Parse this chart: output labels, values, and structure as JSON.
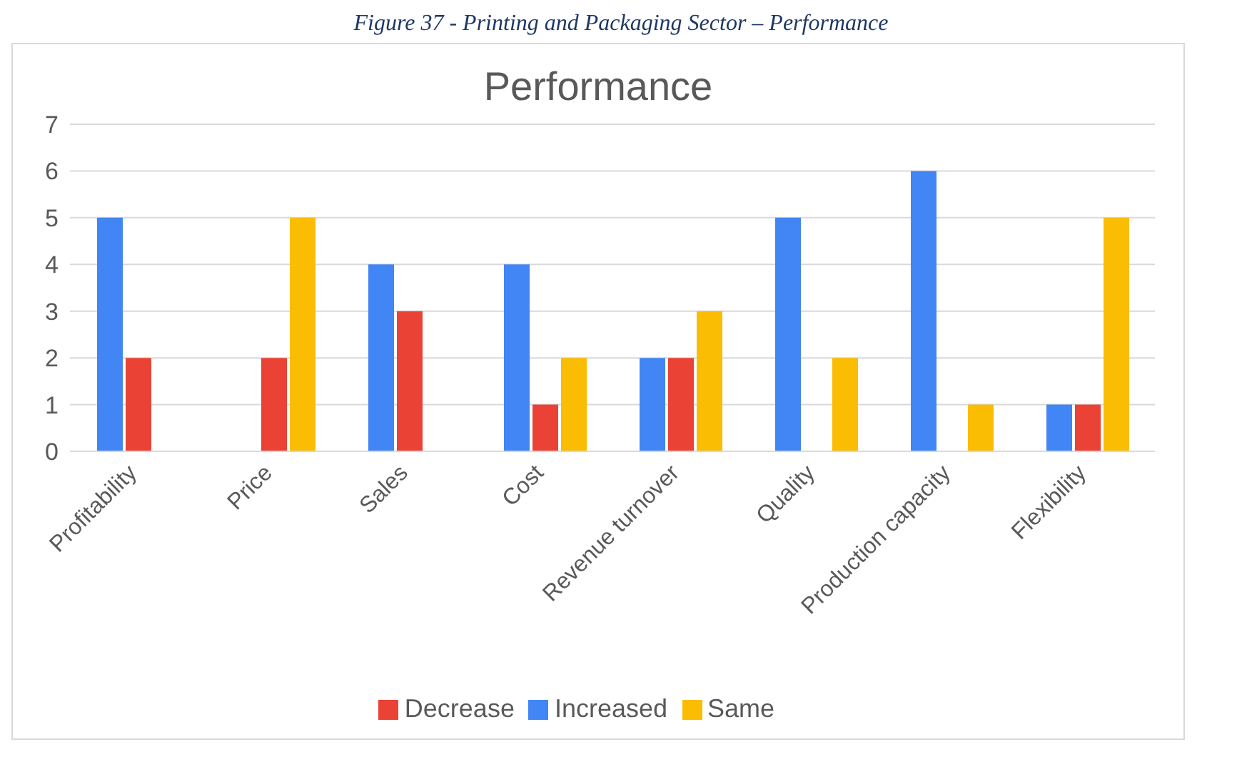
{
  "chart_data": {
    "type": "bar",
    "title": "Performance",
    "annotations": [
      "Figure 37 - Printing and Packaging Sector – Performance"
    ],
    "categories": [
      "Profitability",
      "Price",
      "Sales",
      "Cost",
      "Revenue turnover",
      "Quality",
      "Production capacity",
      "Flexibility"
    ],
    "series": [
      {
        "name": "Increased",
        "color": "#4285f4",
        "values": [
          5,
          0,
          4,
          4,
          2,
          5,
          6,
          1
        ]
      },
      {
        "name": "Decrease",
        "color": "#ea4335",
        "values": [
          2,
          2,
          3,
          1,
          2,
          0,
          0,
          1
        ]
      },
      {
        "name": "Same",
        "color": "#fbbc04",
        "values": [
          0,
          5,
          0,
          2,
          3,
          2,
          1,
          5
        ]
      }
    ],
    "ylim": [
      0,
      7
    ],
    "yticks": [
      0,
      1,
      2,
      3,
      4,
      5,
      6,
      7
    ],
    "grid": "y",
    "legend": "bottom"
  }
}
